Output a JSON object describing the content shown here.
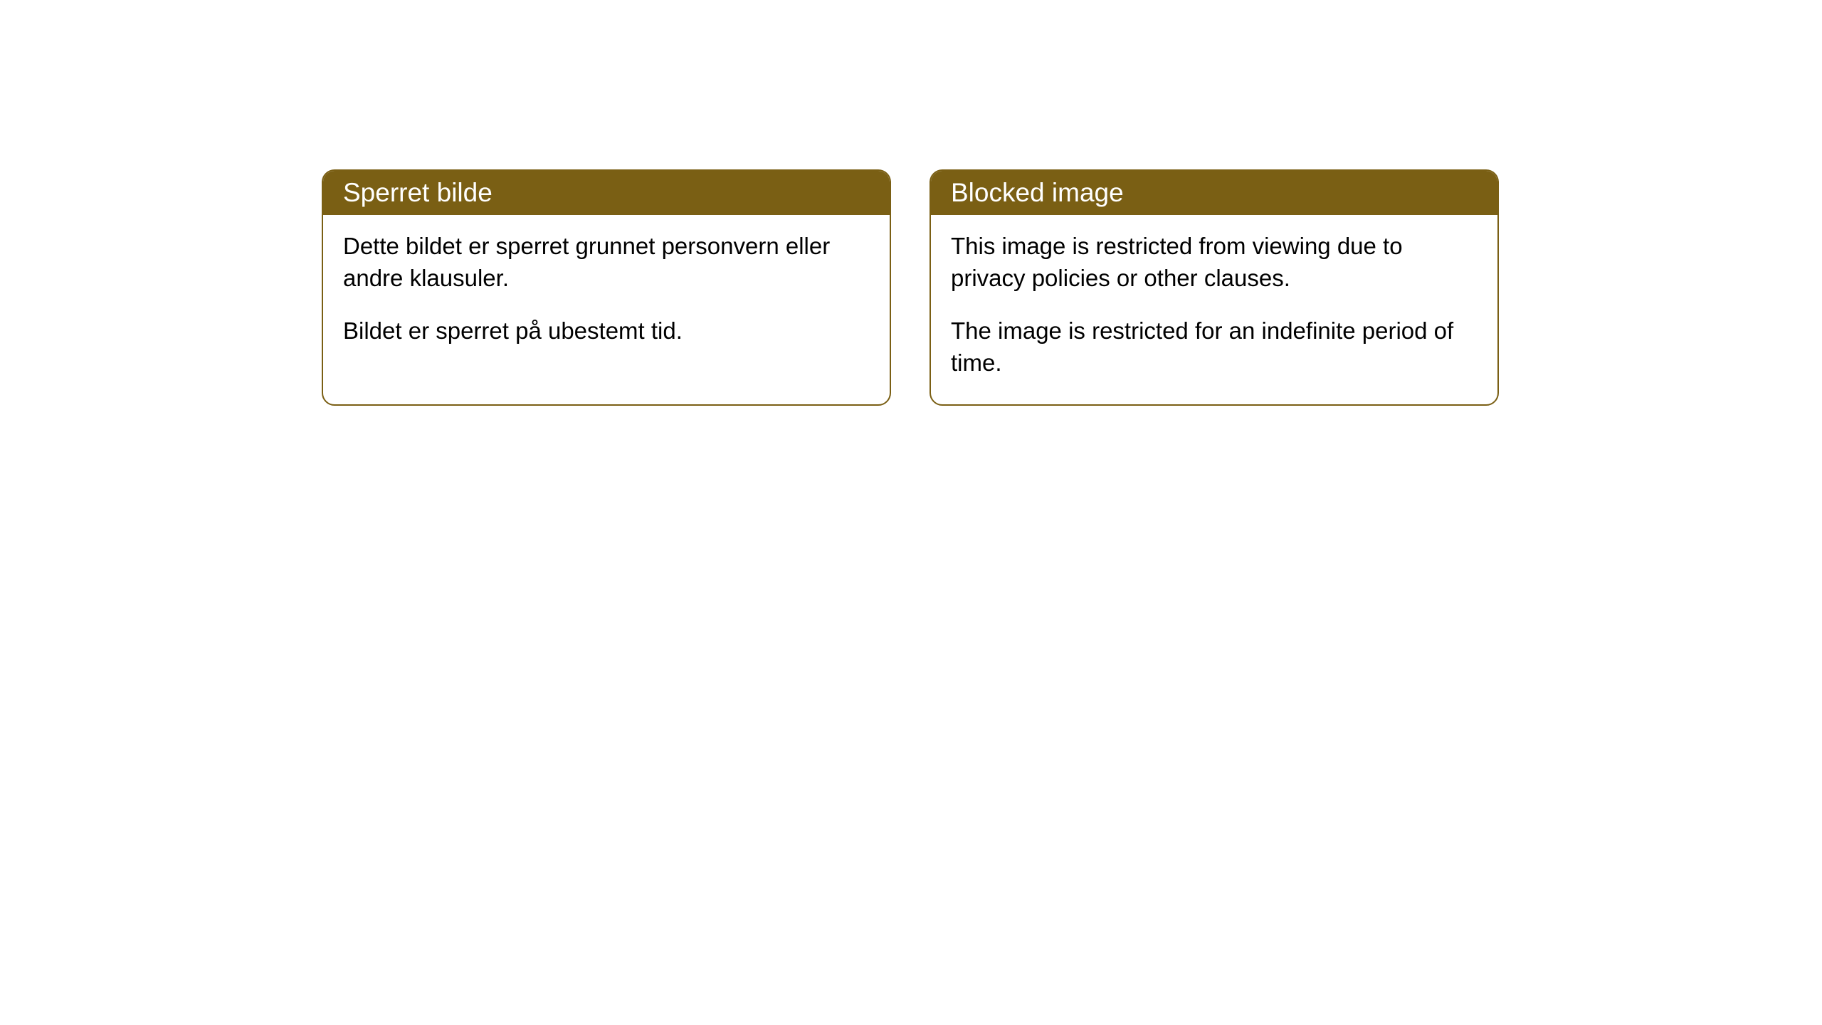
{
  "cards": [
    {
      "title": "Sperret bilde",
      "paragraph1": "Dette bildet er sperret grunnet personvern eller andre klausuler.",
      "paragraph2": "Bildet er sperret på ubestemt tid."
    },
    {
      "title": "Blocked image",
      "paragraph1": "This image is restricted from viewing due to privacy policies or other clauses.",
      "paragraph2": "The image is restricted for an indefinite period of time."
    }
  ],
  "style": {
    "header_background": "#7a5f14",
    "header_text_color": "#ffffff",
    "card_border_color": "#7a5f14",
    "card_background": "#ffffff",
    "body_text_color": "#000000",
    "page_background": "#ffffff",
    "border_radius": 18,
    "title_fontsize": 37,
    "body_fontsize": 33
  }
}
